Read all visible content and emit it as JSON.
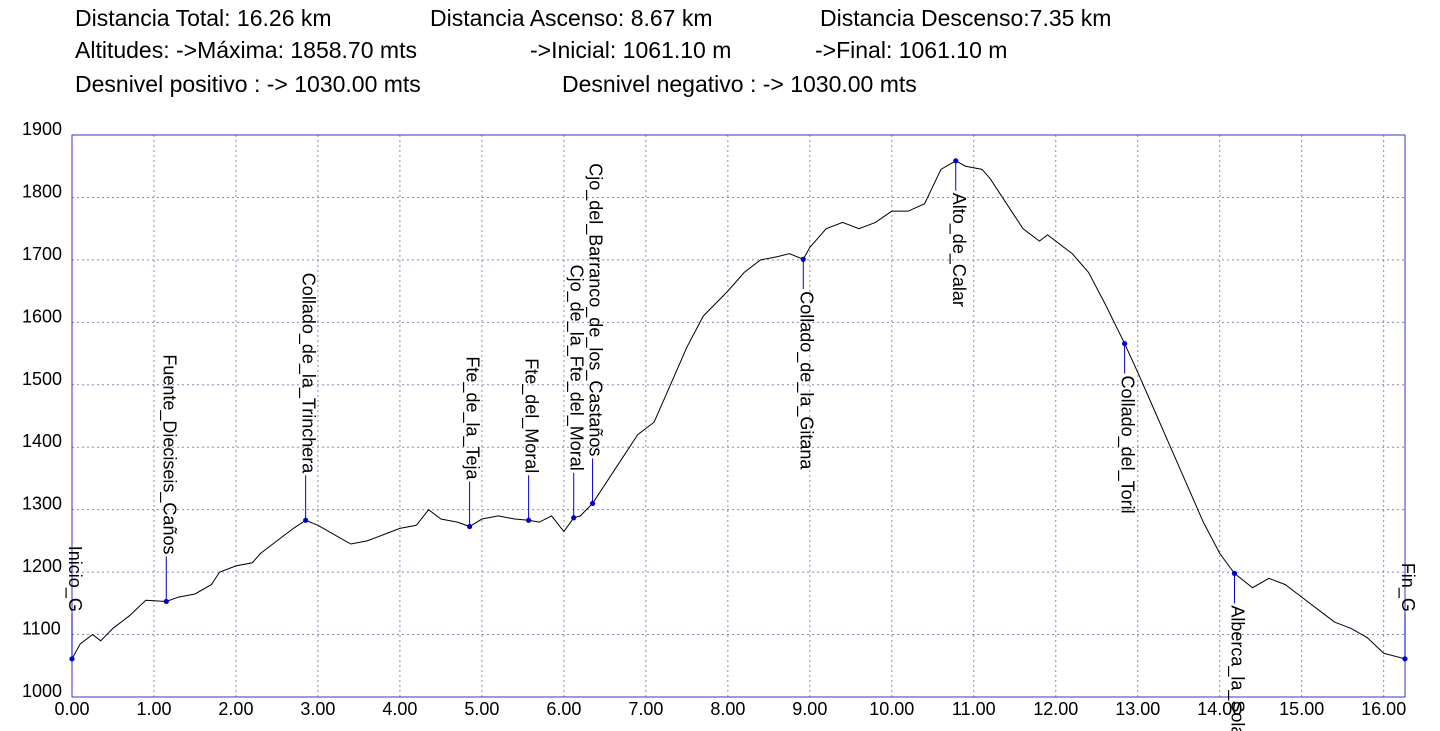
{
  "chart_data": {
    "type": "line",
    "stats": [
      [
        "Distancia Total: 16.26 km",
        "Distancia Ascenso: 8.67 km",
        "Distancia Descenso:7.35 km"
      ],
      [
        "Altitudes: ->Máxima: 1858.70 mts",
        "->Inicial: 1061.10 m",
        "->Final: 1061.10 m"
      ],
      [
        "Desnivel positivo : -> 1030.00 mts",
        "Desnivel negativo : -> 1030.00 mts"
      ]
    ],
    "x": [
      0,
      0.1,
      0.25,
      0.35,
      0.5,
      0.7,
      0.9,
      1.15,
      1.3,
      1.5,
      1.7,
      1.8,
      2.0,
      2.2,
      2.3,
      2.5,
      2.7,
      2.85,
      3.0,
      3.2,
      3.4,
      3.6,
      3.8,
      4.0,
      4.2,
      4.35,
      4.5,
      4.7,
      4.85,
      5.0,
      5.2,
      5.4,
      5.57,
      5.7,
      5.85,
      6.0,
      6.12,
      6.2,
      6.35,
      6.5,
      6.7,
      6.9,
      7.1,
      7.3,
      7.5,
      7.7,
      8.0,
      8.2,
      8.4,
      8.6,
      8.75,
      8.92,
      9.0,
      9.2,
      9.4,
      9.6,
      9.8,
      10.0,
      10.2,
      10.4,
      10.6,
      10.78,
      10.9,
      11.1,
      11.2,
      11.4,
      11.6,
      11.8,
      11.9,
      12.0,
      12.2,
      12.4,
      12.6,
      12.84,
      13.0,
      13.2,
      13.4,
      13.6,
      13.8,
      14.0,
      14.18,
      14.4,
      14.6,
      14.8,
      15.0,
      15.2,
      15.4,
      15.6,
      15.8,
      16.0,
      16.26
    ],
    "values": [
      1061.1,
      1085,
      1100,
      1090,
      1110,
      1130,
      1155,
      1153,
      1160,
      1165,
      1180,
      1200,
      1210,
      1215,
      1230,
      1250,
      1270,
      1283,
      1275,
      1260,
      1245,
      1250,
      1260,
      1270,
      1275,
      1300,
      1285,
      1280,
      1273,
      1285,
      1290,
      1285,
      1283,
      1280,
      1290,
      1265,
      1287,
      1290,
      1310,
      1340,
      1380,
      1420,
      1440,
      1500,
      1560,
      1610,
      1650,
      1680,
      1700,
      1705,
      1710,
      1701,
      1720,
      1750,
      1760,
      1750,
      1760,
      1778,
      1778,
      1790,
      1845,
      1858.7,
      1850,
      1845,
      1830,
      1790,
      1750,
      1730,
      1740,
      1730,
      1710,
      1680,
      1630,
      1566,
      1520,
      1460,
      1400,
      1340,
      1280,
      1230,
      1198,
      1175,
      1190,
      1180,
      1160,
      1140,
      1120,
      1110,
      1095,
      1070,
      1061.1
    ],
    "color": "#000000",
    "point_color": "#0000cc",
    "waypoints": [
      {
        "name": "Inicio_G",
        "x": 0,
        "value": 1061.1
      },
      {
        "name": "Fuente_Dieciseis_Caños",
        "x": 1.15,
        "value": 1153
      },
      {
        "name": "Collado_de_la_Trinchera",
        "x": 2.85,
        "value": 1283
      },
      {
        "name": "Fte_de_la_Teja",
        "x": 4.85,
        "value": 1273
      },
      {
        "name": "Fte_del_Moral",
        "x": 5.57,
        "value": 1283
      },
      {
        "name": "Cjo_de_la_Fte_del_Moral",
        "x": 6.12,
        "value": 1287
      },
      {
        "name": "Cjo_del_Barranco_de_los_Castaños",
        "x": 6.35,
        "value": 1310
      },
      {
        "name": "Collado_de_la_Gitana",
        "x": 8.92,
        "value": 1701
      },
      {
        "name": "Alto_de_Calar",
        "x": 10.78,
        "value": 1858.7
      },
      {
        "name": "Collado_del_Toril",
        "x": 12.84,
        "value": 1566
      },
      {
        "name": "Alberca_la_Solana",
        "x": 14.18,
        "value": 1198
      },
      {
        "name": "Fin_G",
        "x": 16.26,
        "value": 1061.1
      }
    ],
    "xlim": [
      0,
      16.26
    ],
    "ylim": [
      1000,
      1900
    ],
    "xticks": [
      {
        "value": 0,
        "label": "0.00"
      },
      {
        "value": 1,
        "label": "1.00"
      },
      {
        "value": 2,
        "label": "2.00"
      },
      {
        "value": 3,
        "label": "3.00"
      },
      {
        "value": 4,
        "label": "4.00"
      },
      {
        "value": 5,
        "label": "5.00"
      },
      {
        "value": 6,
        "label": "6.00"
      },
      {
        "value": 7,
        "label": "7.00"
      },
      {
        "value": 8,
        "label": "8.00"
      },
      {
        "value": 9,
        "label": "9.00"
      },
      {
        "value": 10,
        "label": "10.00"
      },
      {
        "value": 11,
        "label": "11.00"
      },
      {
        "value": 12,
        "label": "12.00"
      },
      {
        "value": 13,
        "label": "13.00"
      },
      {
        "value": 14,
        "label": "14.00"
      },
      {
        "value": 15,
        "label": "15.00"
      },
      {
        "value": 16,
        "label": "16.00"
      }
    ],
    "yticks": [
      1000,
      1100,
      1200,
      1300,
      1400,
      1500,
      1600,
      1700,
      1800,
      1900
    ],
    "grid": true
  }
}
